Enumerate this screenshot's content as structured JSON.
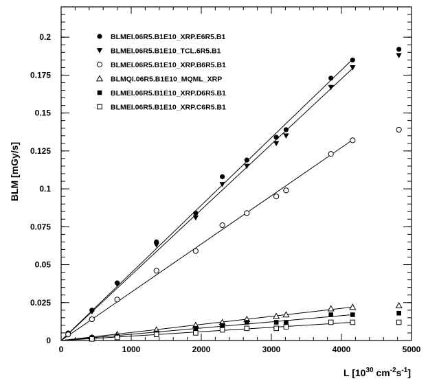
{
  "chart_data": {
    "type": "scatter",
    "title": "",
    "xlabel": {
      "main": "L [10",
      "sup1": "30",
      "mid": " cm",
      "sup2": "-2",
      "mid2": "s",
      "sup3": "-1",
      "end": "]"
    },
    "ylabel": "BLM [mGy/s]",
    "xlim": [
      0,
      5000
    ],
    "ylim": [
      0,
      0.22
    ],
    "x_ticks": [
      0,
      1000,
      2000,
      3000,
      4000,
      5000
    ],
    "y_ticks": [
      0,
      0.025,
      0.05,
      0.075,
      0.1,
      0.125,
      0.15,
      0.175,
      0.2
    ],
    "y_tick_labels": [
      "0",
      "0.025",
      "0.05",
      "0.075",
      "0.1",
      "0.125",
      "0.15",
      "0.175",
      "0.2"
    ],
    "legend_position": "top-left",
    "grid": false,
    "series": [
      {
        "name": "BLMEI.06R5.B1E10_XRP.E6R5.B1",
        "marker": "filled-circle",
        "fit_line": [
          [
            0,
            0
          ],
          [
            4150,
            0.185
          ]
        ],
        "points": [
          [
            100,
            0.005
          ],
          [
            440,
            0.02
          ],
          [
            800,
            0.038
          ],
          [
            1360,
            0.065
          ],
          [
            1920,
            0.084
          ],
          [
            2300,
            0.108
          ],
          [
            2650,
            0.119
          ],
          [
            3070,
            0.134
          ],
          [
            3210,
            0.139
          ],
          [
            3850,
            0.173
          ],
          [
            4160,
            0.185
          ],
          [
            4820,
            0.192
          ]
        ]
      },
      {
        "name": "BLMEI.06R5.B1E10_TCL.6R5.B1",
        "marker": "filled-triangle-down",
        "fit_line": [
          [
            0,
            0
          ],
          [
            4150,
            0.179
          ]
        ],
        "points": [
          [
            100,
            0.004
          ],
          [
            440,
            0.019
          ],
          [
            800,
            0.037
          ],
          [
            1360,
            0.063
          ],
          [
            1920,
            0.081
          ],
          [
            2300,
            0.103
          ],
          [
            2650,
            0.115
          ],
          [
            3070,
            0.13
          ],
          [
            3210,
            0.135
          ],
          [
            3850,
            0.167
          ],
          [
            4160,
            0.18
          ],
          [
            4820,
            0.188
          ]
        ]
      },
      {
        "name": "BLMEI.06R5.B1E10_XRP.B6R5.B1",
        "marker": "open-circle",
        "fit_line": [
          [
            0,
            0
          ],
          [
            4150,
            0.132
          ]
        ],
        "points": [
          [
            100,
            0.004
          ],
          [
            440,
            0.014
          ],
          [
            800,
            0.027
          ],
          [
            1360,
            0.046
          ],
          [
            1920,
            0.059
          ],
          [
            2300,
            0.076
          ],
          [
            2650,
            0.084
          ],
          [
            3070,
            0.095
          ],
          [
            3210,
            0.099
          ],
          [
            3850,
            0.123
          ],
          [
            4160,
            0.132
          ],
          [
            4820,
            0.139
          ]
        ]
      },
      {
        "name": "BLMQI.06R5.B1E10_MQML_XRP",
        "marker": "open-triangle-up",
        "fit_line": [
          [
            0,
            0
          ],
          [
            4150,
            0.022
          ]
        ],
        "points": [
          [
            440,
            0.002
          ],
          [
            800,
            0.004
          ],
          [
            1360,
            0.007
          ],
          [
            1920,
            0.01
          ],
          [
            2300,
            0.012
          ],
          [
            2650,
            0.014
          ],
          [
            3070,
            0.016
          ],
          [
            3210,
            0.017
          ],
          [
            3850,
            0.021
          ],
          [
            4160,
            0.022
          ],
          [
            4820,
            0.023
          ]
        ]
      },
      {
        "name": "BLMEI.06R5.B1E10_XRP.D6R5.B1",
        "marker": "filled-square",
        "fit_line": [
          [
            0,
            0
          ],
          [
            4150,
            0.017
          ]
        ],
        "points": [
          [
            440,
            0.002
          ],
          [
            800,
            0.003
          ],
          [
            1360,
            0.005
          ],
          [
            1920,
            0.008
          ],
          [
            2300,
            0.01
          ],
          [
            2650,
            0.012
          ],
          [
            3070,
            0.012
          ],
          [
            3210,
            0.012
          ],
          [
            3850,
            0.017
          ],
          [
            4160,
            0.017
          ],
          [
            4820,
            0.018
          ]
        ]
      },
      {
        "name": "BLMEI.06R5.B1E10_XRP.C6R5.B1",
        "marker": "open-square",
        "fit_line": [
          [
            0,
            0
          ],
          [
            4150,
            0.012
          ]
        ],
        "points": [
          [
            440,
            0.001
          ],
          [
            800,
            0.002
          ],
          [
            1360,
            0.004
          ],
          [
            1920,
            0.005
          ],
          [
            2300,
            0.007
          ],
          [
            2650,
            0.008
          ],
          [
            3070,
            0.008
          ],
          [
            3210,
            0.009
          ],
          [
            3850,
            0.012
          ],
          [
            4160,
            0.012
          ],
          [
            4820,
            0.012
          ]
        ]
      }
    ]
  }
}
